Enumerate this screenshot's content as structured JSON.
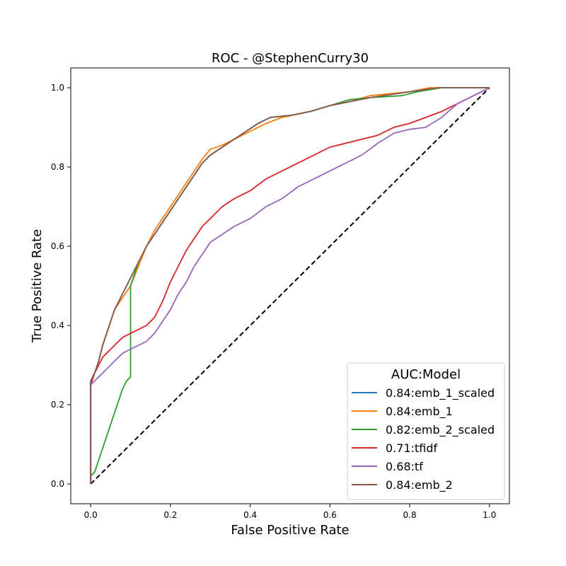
{
  "chart_data": {
    "type": "line",
    "title": "ROC - @StephenCurry30",
    "xlabel": "False Positive Rate",
    "ylabel": "True Positive Rate",
    "xlim": [
      -0.05,
      1.05
    ],
    "ylim": [
      -0.05,
      1.05
    ],
    "xticks": [
      "0.0",
      "0.2",
      "0.4",
      "0.6",
      "0.8",
      "1.0"
    ],
    "yticks": [
      "0.0",
      "0.2",
      "0.4",
      "0.6",
      "0.8",
      "1.0"
    ],
    "grid": false,
    "legend": {
      "title": "AUC:Model",
      "placement": "lower-right"
    },
    "series": [
      {
        "name": "0.84:emb_1_scaled",
        "color": "#1f77b4",
        "points": [
          [
            0,
            0
          ],
          [
            0,
            0.26
          ],
          [
            0.01,
            0.28
          ],
          [
            0.02,
            0.31
          ],
          [
            0.03,
            0.35
          ],
          [
            0.04,
            0.38
          ],
          [
            0.05,
            0.41
          ],
          [
            0.06,
            0.44
          ],
          [
            0.08,
            0.48
          ],
          [
            0.09,
            0.5
          ],
          [
            0.1,
            0.52
          ],
          [
            0.12,
            0.56
          ],
          [
            0.14,
            0.6
          ],
          [
            0.16,
            0.63
          ],
          [
            0.18,
            0.66
          ],
          [
            0.2,
            0.69
          ],
          [
            0.22,
            0.72
          ],
          [
            0.24,
            0.75
          ],
          [
            0.26,
            0.78
          ],
          [
            0.28,
            0.81
          ],
          [
            0.3,
            0.83
          ],
          [
            0.33,
            0.85
          ],
          [
            0.36,
            0.87
          ],
          [
            0.39,
            0.89
          ],
          [
            0.42,
            0.91
          ],
          [
            0.45,
            0.925
          ],
          [
            0.5,
            0.93
          ],
          [
            0.55,
            0.94
          ],
          [
            0.6,
            0.955
          ],
          [
            0.65,
            0.965
          ],
          [
            0.7,
            0.975
          ],
          [
            0.8,
            0.99
          ],
          [
            0.87,
            1.0
          ],
          [
            1.0,
            1.0
          ]
        ]
      },
      {
        "name": "0.84:emb_1",
        "color": "#ff7f0e",
        "points": [
          [
            0,
            0
          ],
          [
            0,
            0.25
          ],
          [
            0.01,
            0.28
          ],
          [
            0.02,
            0.31
          ],
          [
            0.03,
            0.35
          ],
          [
            0.04,
            0.38
          ],
          [
            0.05,
            0.41
          ],
          [
            0.06,
            0.44
          ],
          [
            0.08,
            0.47
          ],
          [
            0.1,
            0.5
          ],
          [
            0.12,
            0.55
          ],
          [
            0.14,
            0.6
          ],
          [
            0.16,
            0.64
          ],
          [
            0.18,
            0.67
          ],
          [
            0.2,
            0.7
          ],
          [
            0.22,
            0.73
          ],
          [
            0.24,
            0.76
          ],
          [
            0.26,
            0.79
          ],
          [
            0.28,
            0.82
          ],
          [
            0.3,
            0.845
          ],
          [
            0.33,
            0.855
          ],
          [
            0.36,
            0.87
          ],
          [
            0.4,
            0.89
          ],
          [
            0.44,
            0.91
          ],
          [
            0.48,
            0.925
          ],
          [
            0.55,
            0.94
          ],
          [
            0.6,
            0.955
          ],
          [
            0.65,
            0.965
          ],
          [
            0.7,
            0.98
          ],
          [
            0.8,
            0.99
          ],
          [
            0.85,
            1.0
          ],
          [
            1.0,
            1.0
          ]
        ]
      },
      {
        "name": "0.82:emb_2_scaled",
        "color": "#2ca02c",
        "points": [
          [
            0,
            0
          ],
          [
            0,
            0.02
          ],
          [
            0.01,
            0.03
          ],
          [
            0.02,
            0.06
          ],
          [
            0.03,
            0.09
          ],
          [
            0.04,
            0.12
          ],
          [
            0.05,
            0.15
          ],
          [
            0.06,
            0.18
          ],
          [
            0.07,
            0.21
          ],
          [
            0.08,
            0.24
          ],
          [
            0.09,
            0.26
          ],
          [
            0.1,
            0.27
          ],
          [
            0.1,
            0.5
          ],
          [
            0.11,
            0.53
          ],
          [
            0.12,
            0.56
          ],
          [
            0.14,
            0.6
          ],
          [
            0.16,
            0.63
          ],
          [
            0.18,
            0.66
          ],
          [
            0.2,
            0.69
          ],
          [
            0.22,
            0.72
          ],
          [
            0.24,
            0.75
          ],
          [
            0.26,
            0.78
          ],
          [
            0.28,
            0.81
          ],
          [
            0.3,
            0.83
          ],
          [
            0.33,
            0.85
          ],
          [
            0.36,
            0.87
          ],
          [
            0.39,
            0.89
          ],
          [
            0.42,
            0.91
          ],
          [
            0.45,
            0.925
          ],
          [
            0.5,
            0.93
          ],
          [
            0.55,
            0.94
          ],
          [
            0.6,
            0.955
          ],
          [
            0.65,
            0.97
          ],
          [
            0.7,
            0.975
          ],
          [
            0.78,
            0.98
          ],
          [
            0.82,
            0.99
          ],
          [
            0.88,
            1.0
          ],
          [
            1.0,
            1.0
          ]
        ]
      },
      {
        "name": "0.71:tfidf",
        "color": "#d62728",
        "points": [
          [
            0,
            0
          ],
          [
            0,
            0.25
          ],
          [
            0.01,
            0.28
          ],
          [
            0.02,
            0.3
          ],
          [
            0.03,
            0.32
          ],
          [
            0.04,
            0.33
          ],
          [
            0.06,
            0.35
          ],
          [
            0.08,
            0.37
          ],
          [
            0.1,
            0.38
          ],
          [
            0.12,
            0.39
          ],
          [
            0.14,
            0.4
          ],
          [
            0.16,
            0.42
          ],
          [
            0.18,
            0.46
          ],
          [
            0.2,
            0.51
          ],
          [
            0.22,
            0.55
          ],
          [
            0.24,
            0.59
          ],
          [
            0.26,
            0.62
          ],
          [
            0.28,
            0.65
          ],
          [
            0.3,
            0.67
          ],
          [
            0.33,
            0.7
          ],
          [
            0.36,
            0.72
          ],
          [
            0.4,
            0.74
          ],
          [
            0.44,
            0.77
          ],
          [
            0.48,
            0.79
          ],
          [
            0.52,
            0.81
          ],
          [
            0.56,
            0.83
          ],
          [
            0.6,
            0.85
          ],
          [
            0.64,
            0.86
          ],
          [
            0.68,
            0.87
          ],
          [
            0.72,
            0.88
          ],
          [
            0.76,
            0.9
          ],
          [
            0.8,
            0.91
          ],
          [
            0.84,
            0.925
          ],
          [
            0.88,
            0.94
          ],
          [
            0.92,
            0.96
          ],
          [
            1.0,
            1.0
          ]
        ]
      },
      {
        "name": "0.68:tf",
        "color": "#9467bd",
        "points": [
          [
            0,
            0
          ],
          [
            0,
            0.25
          ],
          [
            0.02,
            0.27
          ],
          [
            0.04,
            0.29
          ],
          [
            0.06,
            0.31
          ],
          [
            0.08,
            0.33
          ],
          [
            0.1,
            0.34
          ],
          [
            0.12,
            0.35
          ],
          [
            0.14,
            0.36
          ],
          [
            0.16,
            0.38
          ],
          [
            0.18,
            0.41
          ],
          [
            0.2,
            0.44
          ],
          [
            0.22,
            0.48
          ],
          [
            0.24,
            0.51
          ],
          [
            0.26,
            0.55
          ],
          [
            0.28,
            0.58
          ],
          [
            0.3,
            0.61
          ],
          [
            0.33,
            0.63
          ],
          [
            0.36,
            0.65
          ],
          [
            0.4,
            0.67
          ],
          [
            0.44,
            0.7
          ],
          [
            0.48,
            0.72
          ],
          [
            0.52,
            0.75
          ],
          [
            0.56,
            0.77
          ],
          [
            0.6,
            0.79
          ],
          [
            0.64,
            0.81
          ],
          [
            0.68,
            0.83
          ],
          [
            0.72,
            0.86
          ],
          [
            0.76,
            0.885
          ],
          [
            0.8,
            0.895
          ],
          [
            0.84,
            0.9
          ],
          [
            0.88,
            0.925
          ],
          [
            0.92,
            0.96
          ],
          [
            1.0,
            1.0
          ]
        ]
      },
      {
        "name": "0.84:emb_2",
        "color": "#8c564b",
        "points": [
          [
            0,
            0
          ],
          [
            0,
            0.26
          ],
          [
            0.01,
            0.28
          ],
          [
            0.02,
            0.31
          ],
          [
            0.03,
            0.35
          ],
          [
            0.04,
            0.38
          ],
          [
            0.05,
            0.41
          ],
          [
            0.06,
            0.44
          ],
          [
            0.08,
            0.48
          ],
          [
            0.09,
            0.5
          ],
          [
            0.1,
            0.52
          ],
          [
            0.12,
            0.56
          ],
          [
            0.14,
            0.6
          ],
          [
            0.16,
            0.63
          ],
          [
            0.18,
            0.66
          ],
          [
            0.2,
            0.69
          ],
          [
            0.22,
            0.72
          ],
          [
            0.24,
            0.75
          ],
          [
            0.26,
            0.78
          ],
          [
            0.28,
            0.81
          ],
          [
            0.3,
            0.83
          ],
          [
            0.33,
            0.85
          ],
          [
            0.36,
            0.87
          ],
          [
            0.39,
            0.89
          ],
          [
            0.42,
            0.91
          ],
          [
            0.45,
            0.925
          ],
          [
            0.5,
            0.93
          ],
          [
            0.55,
            0.94
          ],
          [
            0.6,
            0.955
          ],
          [
            0.65,
            0.965
          ],
          [
            0.7,
            0.975
          ],
          [
            0.8,
            0.99
          ],
          [
            0.87,
            1.0
          ],
          [
            1.0,
            1.0
          ]
        ]
      }
    ],
    "reference_line": {
      "points": [
        [
          0,
          0
        ],
        [
          1,
          1
        ]
      ],
      "color": "#000000",
      "style": "dashed"
    }
  }
}
